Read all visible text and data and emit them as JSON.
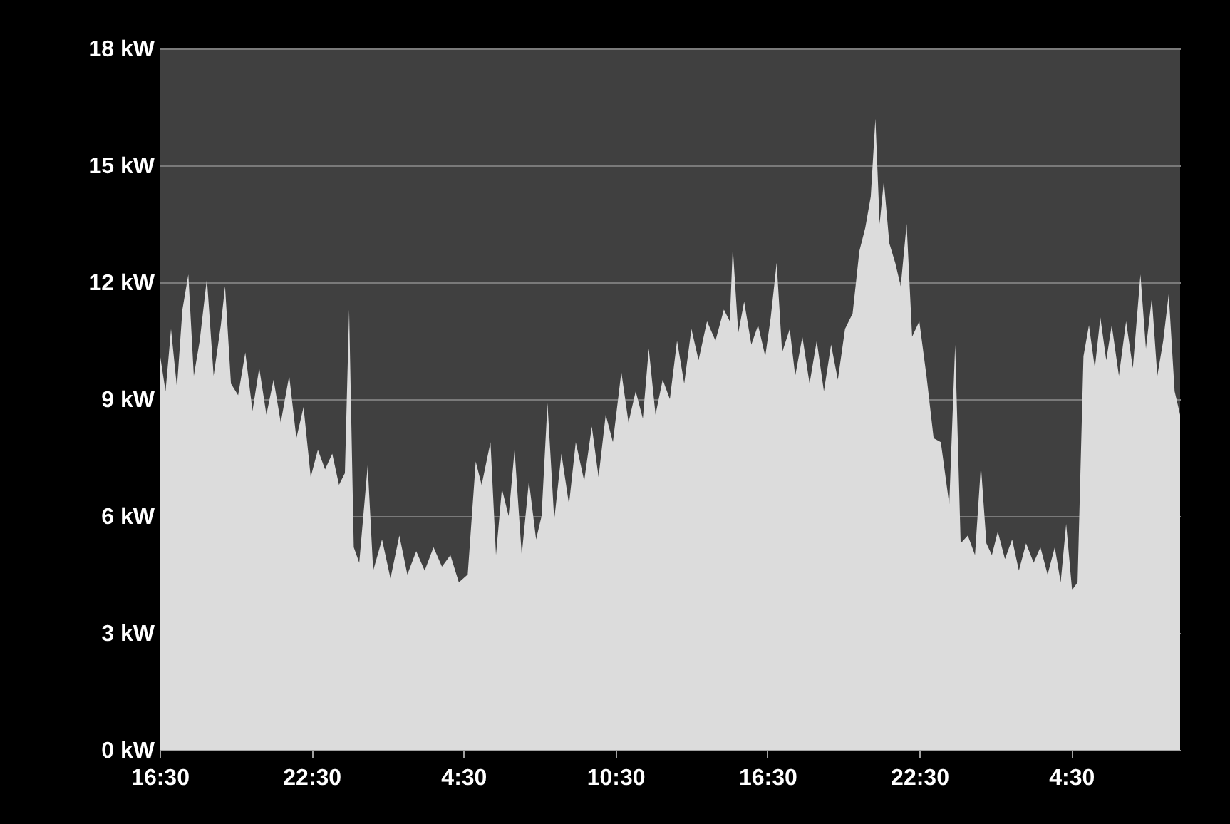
{
  "chart_data": {
    "type": "area",
    "color": "#dcdcdc",
    "grid": "y",
    "xlim": [
      "--01-01T16:30",
      "--01-03T08:48"
    ],
    "xticks": [
      {
        "value": "--01-01T16:30",
        "label": "16:30"
      },
      {
        "value": "--01-01T22:30",
        "label": "22:30"
      },
      {
        "value": "--01-02T04:30",
        "label": "4:30"
      },
      {
        "value": "--01-02T10:30",
        "label": "10:30"
      },
      {
        "value": "--01-02T16:30",
        "label": "16:30"
      },
      {
        "value": "--01-02T22:30",
        "label": "22:30"
      },
      {
        "value": "--01-03T04:30",
        "label": "4:30"
      }
    ],
    "ylim": [
      0,
      18
    ],
    "yticks": [
      {
        "value": 0,
        "label": "0 kW"
      },
      {
        "value": 3,
        "label": "3 kW"
      },
      {
        "value": 6,
        "label": "6 kW"
      },
      {
        "value": 9,
        "label": "9 kW"
      },
      {
        "value": 12,
        "label": "12 kW"
      },
      {
        "value": 15,
        "label": "15 kW"
      },
      {
        "value": 18,
        "label": "18 kW"
      }
    ],
    "x": [
      "--01-01T16:30",
      "--01-01T16:44",
      "--01-01T16:57",
      "--01-01T17:11",
      "--01-01T17:24",
      "--01-01T17:38",
      "--01-01T17:51",
      "--01-01T18:05",
      "--01-01T18:22",
      "--01-01T18:38",
      "--01-01T18:55",
      "--01-01T19:05",
      "--01-01T19:19",
      "--01-01T19:36",
      "--01-01T19:53",
      "--01-01T20:10",
      "--01-01T20:26",
      "--01-01T20:43",
      "--01-01T21:00",
      "--01-01T21:17",
      "--01-01T21:37",
      "--01-01T21:54",
      "--01-01T22:11",
      "--01-01T22:28",
      "--01-01T22:45",
      "--01-01T23:02",
      "--01-01T23:19",
      "--01-01T23:35",
      "--01-01T23:49",
      "--01-01T23:59",
      "--01-02T00:10",
      "--01-02T00:23",
      "--01-02T00:43",
      "--01-02T00:56",
      "--01-02T01:17",
      "--01-02T01:37",
      "--01-02T01:58",
      "--01-02T02:17",
      "--01-02T02:38",
      "--01-02T02:58",
      "--01-02T03:19",
      "--01-02T03:39",
      "--01-02T03:59",
      "--01-02T04:19",
      "--01-02T04:40",
      "--01-02T04:59",
      "--01-02T05:13",
      "--01-02T05:34",
      "--01-02T05:47",
      "--01-02T06:01",
      "--01-02T06:17",
      "--01-02T06:31",
      "--01-02T06:48",
      "--01-02T07:05",
      "--01-02T07:22",
      "--01-02T07:35",
      "--01-02T07:49",
      "--01-02T08:05",
      "--01-02T08:22",
      "--01-02T08:40",
      "--01-02T08:56",
      "--01-02T09:16",
      "--01-02T09:34",
      "--01-02T09:50",
      "--01-02T10:07",
      "--01-02T10:24",
      "--01-02T10:44",
      "--01-02T11:01",
      "--01-02T11:18",
      "--01-02T11:35",
      "--01-02T11:49",
      "--01-02T12:05",
      "--01-02T12:22",
      "--01-02T12:39",
      "--01-02T12:56",
      "--01-02T13:13",
      "--01-02T13:30",
      "--01-02T13:47",
      "--01-02T14:07",
      "--01-02T14:27",
      "--01-02T14:47",
      "--01-02T15:01",
      "--01-02T15:08",
      "--01-02T15:21",
      "--01-02T15:35",
      "--01-02T15:52",
      "--01-02T16:08",
      "--01-02T16:25",
      "--01-02T16:38",
      "--01-02T16:52",
      "--01-02T17:05",
      "--01-02T17:23",
      "--01-02T17:36",
      "--01-02T17:53",
      "--01-02T18:10",
      "--01-02T18:27",
      "--01-02T18:44",
      "--01-02T19:01",
      "--01-02T19:17",
      "--01-02T19:34",
      "--01-02T19:52",
      "--01-02T20:08",
      "--01-02T20:22",
      "--01-02T20:35",
      "--01-02T20:46",
      "--01-02T20:56",
      "--01-02T21:06",
      "--01-02T21:19",
      "--01-02T21:33",
      "--01-02T21:46",
      "--01-02T22:00",
      "--01-02T22:13",
      "--01-02T22:30",
      "--01-02T22:47",
      "--01-02T23:04",
      "--01-02T23:21",
      "--01-02T23:41",
      "--01-02T23:55",
      "--01-03T00:08",
      "--01-03T00:25",
      "--01-03T00:42",
      "--01-03T00:56",
      "--01-03T01:09",
      "--01-03T01:22",
      "--01-03T01:36",
      "--01-03T01:53",
      "--01-03T02:10",
      "--01-03T02:26",
      "--01-03T02:43",
      "--01-03T03:01",
      "--01-03T03:17",
      "--01-03T03:34",
      "--01-03T03:51",
      "--01-03T04:05",
      "--01-03T04:18",
      "--01-03T04:32",
      "--01-03T04:45",
      "--01-03T04:59",
      "--01-03T05:12",
      "--01-03T05:26",
      "--01-03T05:39",
      "--01-03T05:53",
      "--01-03T06:06",
      "--01-03T06:23",
      "--01-03T06:40",
      "--01-03T06:56",
      "--01-03T07:14",
      "--01-03T07:27",
      "--01-03T07:41",
      "--01-03T07:54",
      "--01-03T08:08",
      "--01-03T08:21",
      "--01-03T08:35",
      "--01-03T08:48"
    ],
    "values": [
      10.2,
      9.2,
      10.8,
      9.3,
      11.3,
      12.2,
      9.6,
      10.5,
      12.1,
      9.6,
      10.9,
      11.9,
      9.4,
      9.1,
      10.2,
      8.7,
      9.8,
      8.6,
      9.5,
      8.4,
      9.6,
      8.0,
      8.8,
      7.0,
      7.7,
      7.2,
      7.6,
      6.8,
      7.1,
      11.3,
      5.2,
      4.8,
      7.3,
      4.6,
      5.4,
      4.4,
      5.5,
      4.5,
      5.1,
      4.6,
      5.2,
      4.7,
      5.0,
      4.3,
      4.5,
      7.4,
      6.8,
      7.9,
      5.0,
      6.7,
      6.0,
      7.7,
      5.0,
      6.9,
      5.4,
      6.0,
      8.9,
      5.9,
      7.6,
      6.3,
      7.9,
      6.9,
      8.3,
      7.0,
      8.6,
      7.9,
      9.7,
      8.4,
      9.2,
      8.5,
      10.3,
      8.6,
      9.5,
      9.0,
      10.5,
      9.4,
      10.8,
      10.0,
      11.0,
      10.5,
      11.3,
      11.0,
      12.9,
      10.7,
      11.5,
      10.4,
      10.9,
      10.1,
      11.1,
      12.5,
      10.2,
      10.8,
      9.6,
      10.6,
      9.4,
      10.5,
      9.2,
      10.4,
      9.5,
      10.8,
      11.2,
      12.8,
      13.4,
      14.2,
      16.2,
      13.5,
      14.6,
      13.0,
      12.5,
      11.9,
      13.5,
      10.6,
      11.0,
      9.6,
      8.0,
      7.9,
      6.3,
      10.4,
      5.3,
      5.5,
      5.0,
      7.3,
      5.3,
      5.0,
      5.6,
      4.9,
      5.4,
      4.6,
      5.3,
      4.8,
      5.2,
      4.5,
      5.2,
      4.3,
      5.8,
      4.1,
      4.3,
      10.1,
      10.9,
      9.8,
      11.1,
      10.0,
      10.9,
      9.6,
      11.0,
      9.8,
      12.2,
      10.3,
      11.6,
      9.6,
      10.5,
      11.7,
      9.2,
      8.6
    ]
  }
}
